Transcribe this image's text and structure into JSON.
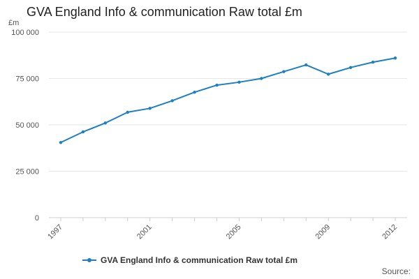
{
  "chart_data": {
    "type": "line",
    "title": "GVA England Info & communication Raw total £m",
    "y_unit": "£m",
    "x": [
      1997,
      1998,
      1999,
      2000,
      2001,
      2002,
      2003,
      2004,
      2005,
      2006,
      2007,
      2008,
      2009,
      2010,
      2011,
      2012
    ],
    "x_tick_labels": [
      "1997",
      "2001",
      "2005",
      "2009",
      "2012"
    ],
    "y_tick_labels": [
      "0",
      "25 000",
      "50 000",
      "75 000",
      "100 000"
    ],
    "ylim": [
      0,
      100000
    ],
    "grid": "horizontal",
    "legend_position": "bottom",
    "series": [
      {
        "name": "GVA England Info & communication Raw total £m",
        "color": "#1f7fc0",
        "values": [
          40500,
          46200,
          51000,
          56800,
          58900,
          63000,
          67600,
          71400,
          73000,
          75000,
          78700,
          82300,
          77300,
          80900,
          83800,
          86000
        ]
      }
    ],
    "source_label": "Source:"
  }
}
